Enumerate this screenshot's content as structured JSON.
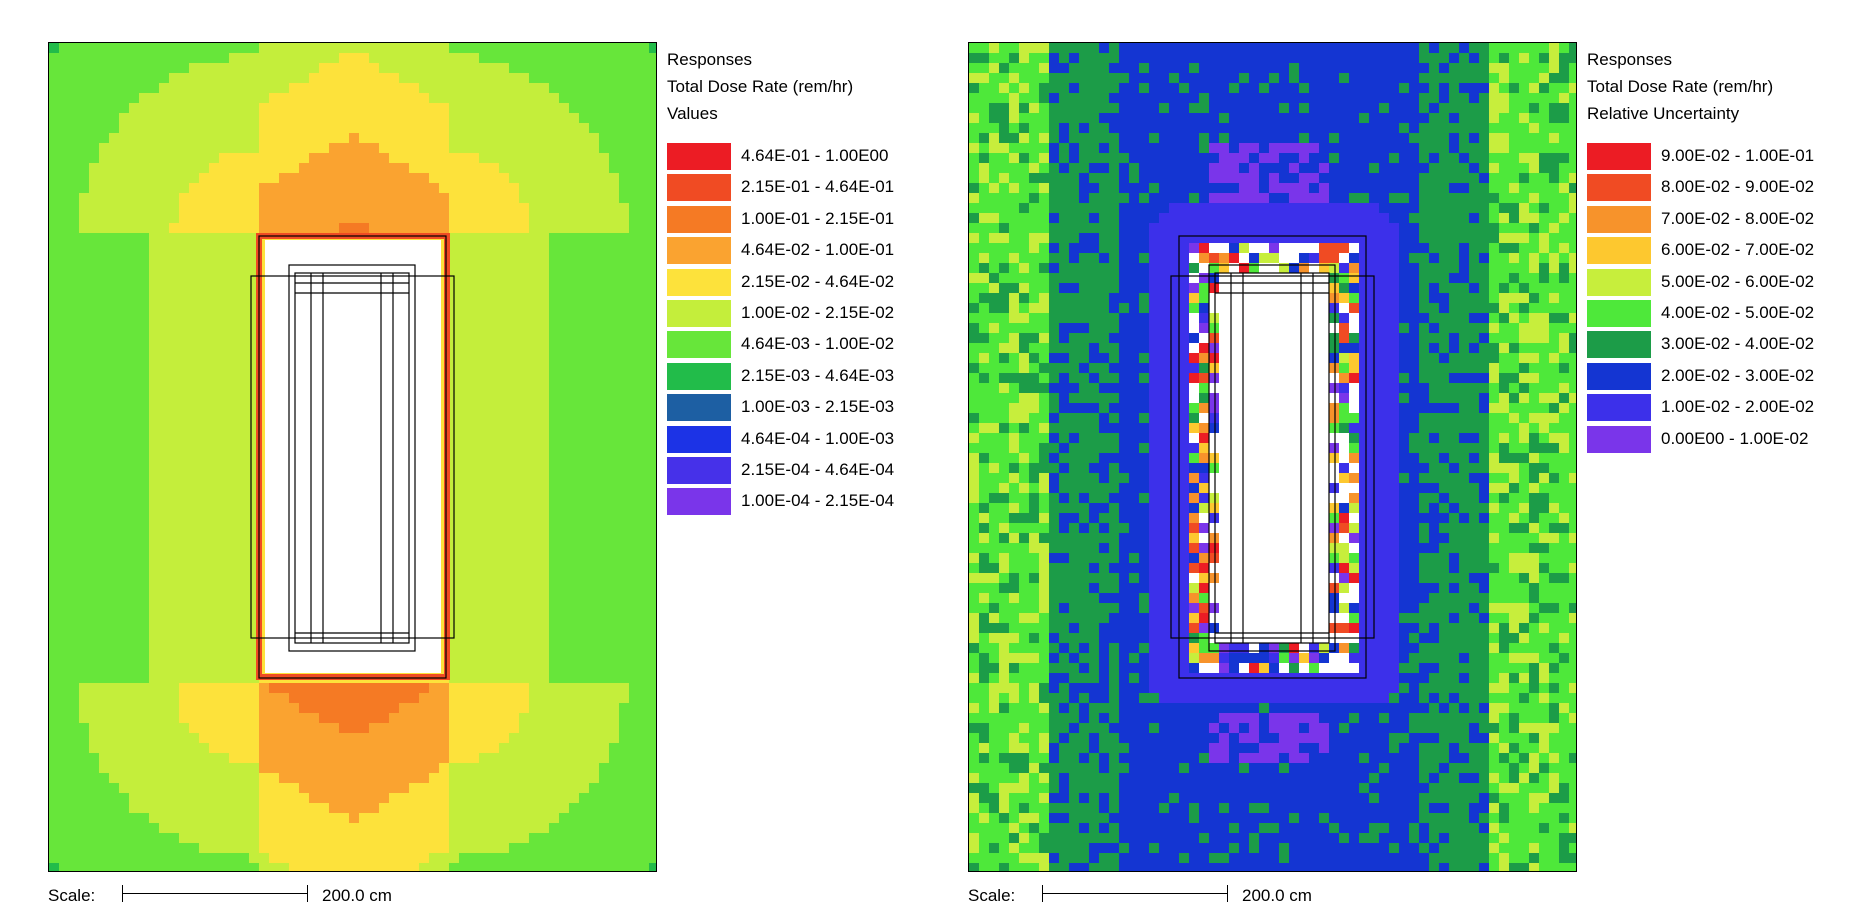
{
  "chart_data": [
    {
      "type": "heatmap",
      "legend": {
        "title_lines": [
          "Responses",
          "Total Dose Rate (rem/hr)",
          "Values"
        ],
        "placement": "right",
        "bins": [
          {
            "label": "4.64E-01 - 1.00E00",
            "color": "#ec1c24"
          },
          {
            "label": "2.15E-01 - 4.64E-01",
            "color": "#f04b23"
          },
          {
            "label": "1.00E-01 - 2.15E-01",
            "color": "#f57a24"
          },
          {
            "label": "4.64E-02 - 1.00E-01",
            "color": "#faa330"
          },
          {
            "label": "2.15E-02 - 4.64E-02",
            "color": "#fde23b"
          },
          {
            "label": "1.00E-02 - 2.15E-02",
            "color": "#c4ee3b"
          },
          {
            "label": "4.64E-03 - 1.00E-02",
            "color": "#67e63a"
          },
          {
            "label": "2.15E-03 - 4.64E-03",
            "color": "#22bc4a"
          },
          {
            "label": "1.00E-03 - 2.15E-03",
            "color": "#1d5fa3"
          },
          {
            "label": "4.64E-04 - 1.00E-03",
            "color": "#1c33e6"
          },
          {
            "label": "2.15E-04 - 4.64E-04",
            "color": "#4631e9"
          },
          {
            "label": "1.00E-04 - 2.15E-04",
            "color": "#7a35ea"
          }
        ]
      },
      "scale": {
        "label": "Scale:",
        "value": "200.0 cm"
      }
    },
    {
      "type": "heatmap",
      "legend": {
        "title_lines": [
          "Responses",
          "Total Dose Rate (rem/hr)",
          "Relative Uncertainty"
        ],
        "placement": "right",
        "bins": [
          {
            "label": "9.00E-02 - 1.00E-01",
            "color": "#ec1c24"
          },
          {
            "label": "8.00E-02 - 9.00E-02",
            "color": "#f04b23"
          },
          {
            "label": "7.00E-02 - 8.00E-02",
            "color": "#f7932b"
          },
          {
            "label": "6.00E-02 - 7.00E-02",
            "color": "#fdc82f"
          },
          {
            "label": "5.00E-02 - 6.00E-02",
            "color": "#c7ee3c"
          },
          {
            "label": "4.00E-02 - 5.00E-02",
            "color": "#4ee83a"
          },
          {
            "label": "3.00E-02 - 4.00E-02",
            "color": "#1c9c48"
          },
          {
            "label": "2.00E-02 - 3.00E-02",
            "color": "#1435d2"
          },
          {
            "label": "1.00E-02 - 2.00E-02",
            "color": "#3c30ea"
          },
          {
            "label": "0.00E00 - 1.00E-02",
            "color": "#7a35ea"
          }
        ]
      },
      "scale": {
        "label": "Scale:",
        "value": "200.0 cm"
      }
    }
  ]
}
